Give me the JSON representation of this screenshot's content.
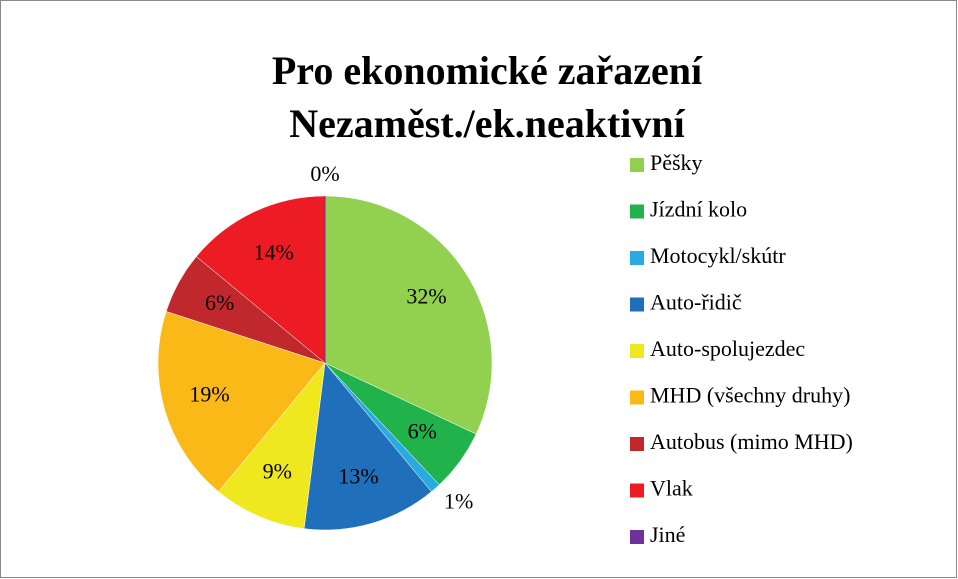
{
  "chart_data": {
    "type": "pie",
    "title": "Pro ekonomické zařazení",
    "subtitle": "Nezaměst./ek.neaktivní",
    "categories": [
      "Pěšky",
      "Jízdní kolo",
      "Motocykl/skútr",
      "Auto-řidič",
      "Auto-spolujezdec",
      "MHD (všechny druhy)",
      "Autobus (mimo MHD)",
      "Vlak",
      "Jiné"
    ],
    "values": [
      32,
      6,
      1,
      13,
      9,
      19,
      6,
      14,
      0
    ],
    "value_labels": [
      "32%",
      "6%",
      "1%",
      "13%",
      "9%",
      "19%",
      "6%",
      "14%",
      "0%"
    ],
    "colors": [
      "#92d050",
      "#21b24b",
      "#29abe2",
      "#1f6fba",
      "#f0e81e",
      "#fbb917",
      "#c0282d",
      "#ed1c24",
      "#7030a0"
    ],
    "legend": "right"
  }
}
